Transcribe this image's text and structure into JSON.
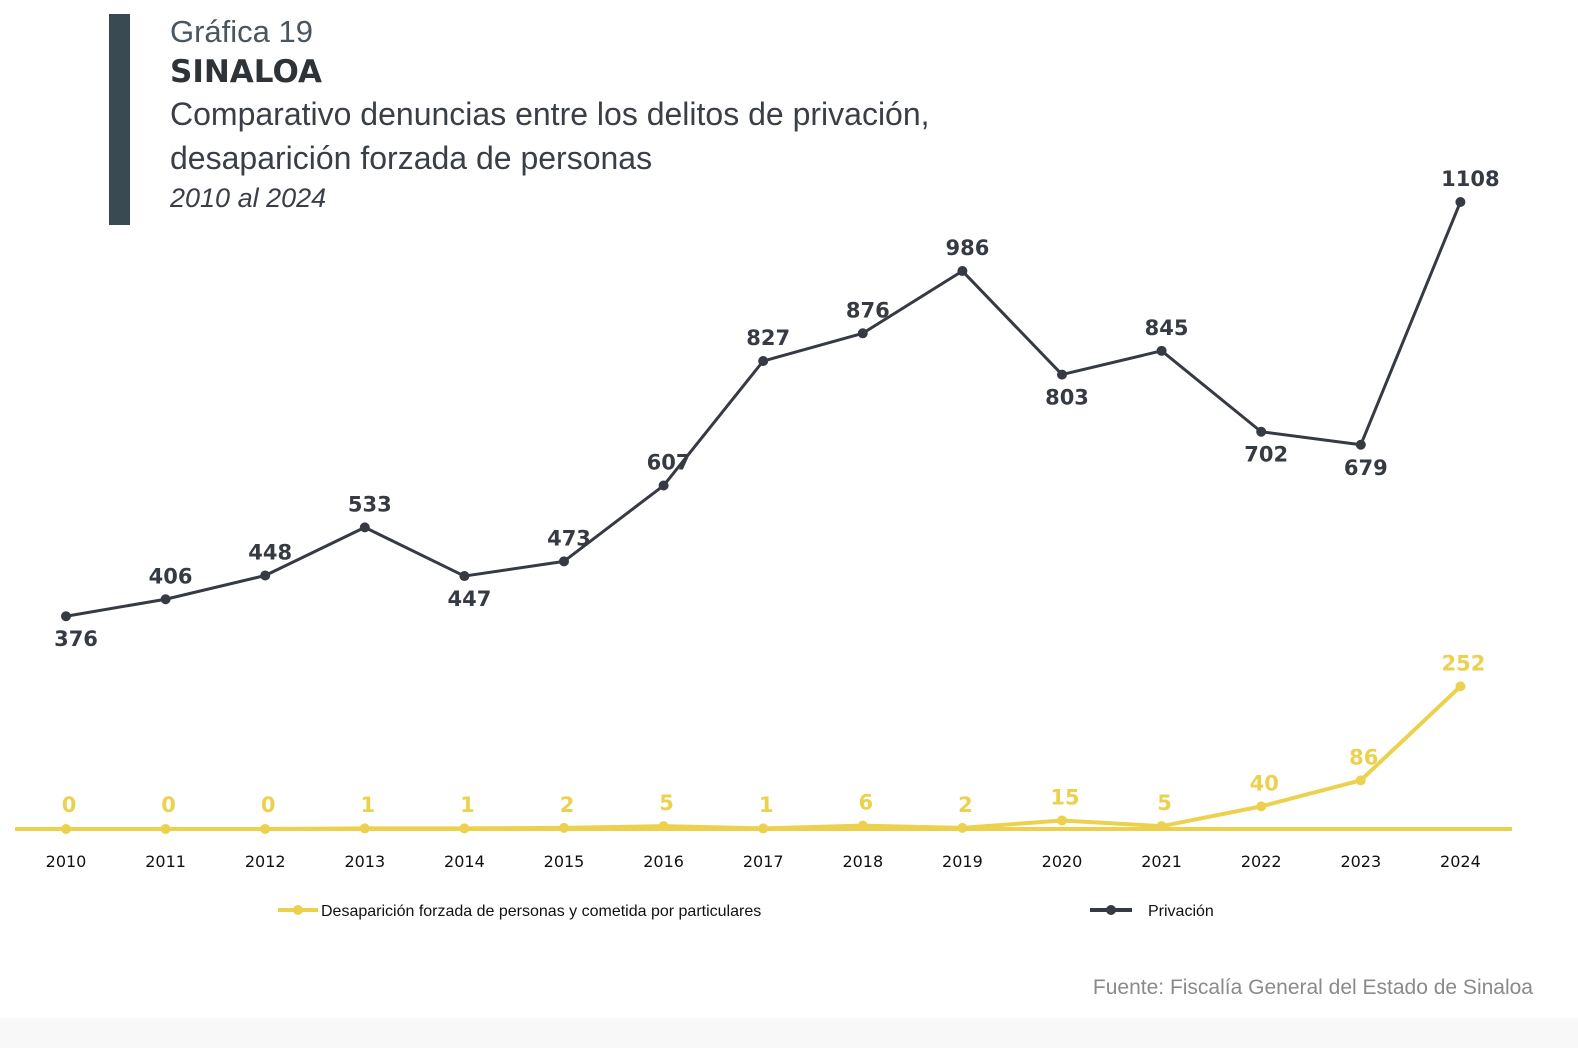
{
  "header": {
    "label": "Gráfica 19",
    "state": "SINALOA",
    "title_line1": "Comparativo denuncias entre los delitos de privación,",
    "title_line2": "desaparición forzada de personas",
    "subtitle": "2010 al 2024"
  },
  "source": "Fuente: Fiscalía General del Estado de Sinaloa",
  "chart_data": {
    "type": "line",
    "categories": [
      "2010",
      "2011",
      "2012",
      "2013",
      "2014",
      "2015",
      "2016",
      "2017",
      "2018",
      "2019",
      "2020",
      "2021",
      "2022",
      "2023",
      "2024"
    ],
    "series": [
      {
        "name": "Privación",
        "color": "#363a42",
        "values": [
          376,
          406,
          448,
          533,
          447,
          473,
          607,
          827,
          876,
          986,
          803,
          845,
          702,
          679,
          1108
        ]
      },
      {
        "name": "Desaparición forzada de personas y cometida por particulares",
        "color": "#ecd14f",
        "values": [
          0,
          0,
          0,
          1,
          1,
          2,
          5,
          1,
          6,
          2,
          15,
          5,
          40,
          86,
          252
        ]
      }
    ],
    "ylim": [
      0,
      1108
    ],
    "grid": false,
    "legend": "bottom",
    "data_labels": true
  }
}
